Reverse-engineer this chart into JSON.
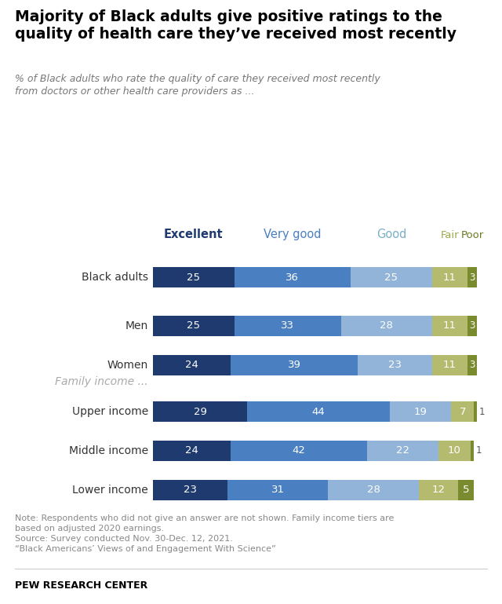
{
  "title": "Majority of Black adults give positive ratings to the\nquality of health care they’ve received most recently",
  "subtitle": "% of Black adults who rate the quality of care they received most recently\nfrom doctors or other health care providers as ...",
  "categories": [
    "Black adults",
    "Men",
    "Women",
    "Upper income",
    "Middle income",
    "Lower income"
  ],
  "data": {
    "Black adults": [
      25,
      36,
      25,
      11,
      3
    ],
    "Men": [
      25,
      33,
      28,
      11,
      3
    ],
    "Women": [
      24,
      39,
      23,
      11,
      3
    ],
    "Upper income": [
      29,
      44,
      19,
      7,
      1
    ],
    "Middle income": [
      24,
      42,
      22,
      10,
      1
    ],
    "Lower income": [
      23,
      31,
      28,
      12,
      5
    ]
  },
  "legend_labels": [
    "Excellent",
    "Very good",
    "Good",
    "Fair",
    "Poor"
  ],
  "bar_colors": [
    "#1e3a6e",
    "#4a7fc1",
    "#92b4d8",
    "#b5bb6e",
    "#7a8a2e"
  ],
  "header_colors": [
    "#1e3a6e",
    "#4a7fc1",
    "#7aafc8",
    "#9da84a",
    "#6b7a20"
  ],
  "header_weights": [
    "bold",
    "normal",
    "normal",
    "normal",
    "normal"
  ],
  "note": "Note: Respondents who did not give an answer are not shown. Family income tiers are\nbased on adjusted 2020 earnings.\nSource: Survey conducted Nov. 30-Dec. 12, 2021.\n“Black Americans’ Views of and Engagement With Science”",
  "footer": "PEW RESEARCH CENTER",
  "bg_color": "#ffffff",
  "family_income_label": "Family income ..."
}
